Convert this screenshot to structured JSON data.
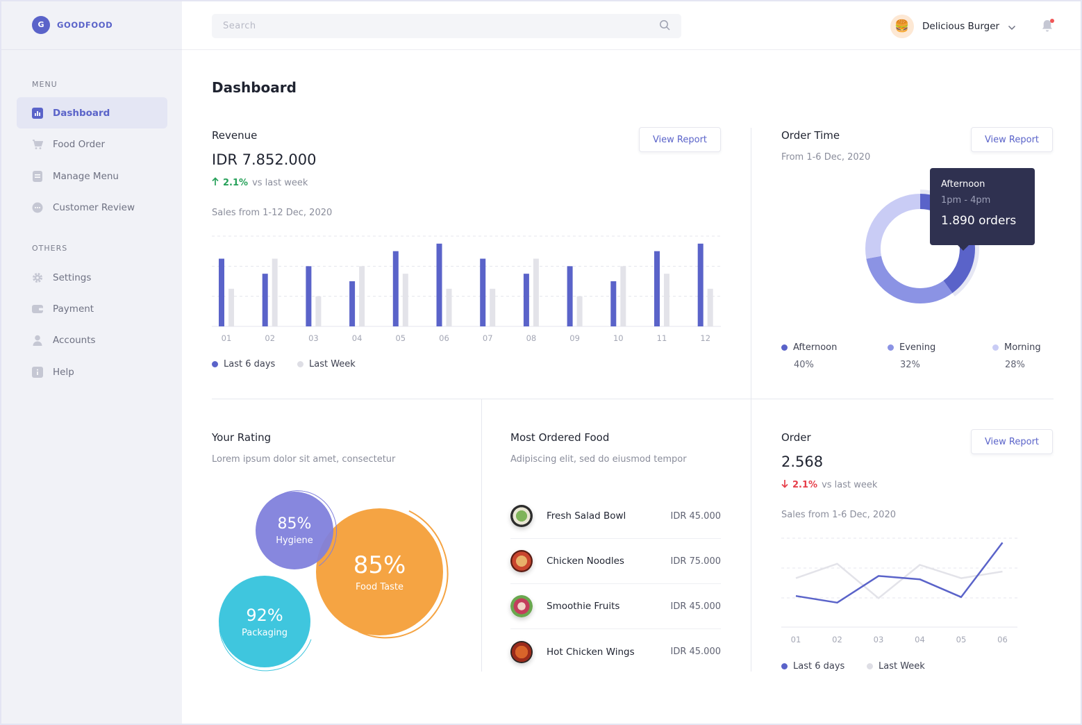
{
  "brand": {
    "logo_letter": "G",
    "name": "GOODFOOD"
  },
  "sidebar": {
    "menu_label": "MENU",
    "menu_items": [
      {
        "label": "Dashboard",
        "icon": "bar-chart-icon",
        "active": true
      },
      {
        "label": "Food Order",
        "icon": "cart-icon"
      },
      {
        "label": "Manage Menu",
        "icon": "document-icon"
      },
      {
        "label": "Customer Review",
        "icon": "chat-icon"
      }
    ],
    "others_label": "OTHERS",
    "other_items": [
      {
        "label": "Settings",
        "icon": "gear-icon"
      },
      {
        "label": "Payment",
        "icon": "wallet-icon"
      },
      {
        "label": "Accounts",
        "icon": "user-icon"
      },
      {
        "label": "Help",
        "icon": "info-icon"
      }
    ]
  },
  "header": {
    "search_placeholder": "Search",
    "user_name": "Delicious Burger",
    "avatar_glyph": "🍔"
  },
  "page_title": "Dashboard",
  "revenue": {
    "title": "Revenue",
    "view_report": "View Report",
    "amount": "IDR 7.852.000",
    "delta_pct": "2.1%",
    "delta_text": "vs last week",
    "sales_period": "Sales from 1-12 Dec, 2020",
    "legend_current": "Last 6 days",
    "legend_previous": "Last Week"
  },
  "order_time": {
    "title": "Order Time",
    "view_report": "View Report",
    "period": "From 1-6 Dec, 2020",
    "tooltip": {
      "title": "Afternoon",
      "range": "1pm - 4pm",
      "value": "1.890 orders"
    },
    "segments": [
      {
        "name": "Afternoon",
        "pct_label": "40%",
        "value": 40,
        "color": "#5a63c9"
      },
      {
        "name": "Evening",
        "pct_label": "32%",
        "value": 32,
        "color": "#8b93e4"
      },
      {
        "name": "Morning",
        "pct_label": "28%",
        "value": 28,
        "color": "#c9ccf5"
      }
    ]
  },
  "rating": {
    "title": "Your Rating",
    "subtitle": "Lorem ipsum dolor sit amet, consectetur",
    "hygiene": {
      "value": "85%",
      "label": "Hygiene",
      "color": "#7f7fdc"
    },
    "food_taste": {
      "value": "85%",
      "label": "Food Taste",
      "color": "#f5a443"
    },
    "packaging": {
      "value": "92%",
      "label": "Packaging",
      "color": "#3fc6de"
    }
  },
  "most_ordered": {
    "title": "Most Ordered Food",
    "subtitle": "Adipiscing elit, sed do eiusmod tempor",
    "items": [
      {
        "name": "Fresh Salad Bowl",
        "price": "IDR 45.000"
      },
      {
        "name": "Chicken Noodles",
        "price": "IDR 75.000"
      },
      {
        "name": "Smoothie Fruits",
        "price": "IDR 45.000"
      },
      {
        "name": "Hot Chicken Wings",
        "price": "IDR 45.000"
      }
    ]
  },
  "order": {
    "title": "Order",
    "view_report": "View Report",
    "count": "2.568",
    "delta_pct": "2.1%",
    "delta_text": "vs last week",
    "sales_period": "Sales from 1-6 Dec, 2020",
    "legend_current": "Last 6 days",
    "legend_previous": "Last Week"
  },
  "chart_data": [
    {
      "type": "bar",
      "categories": [
        "01",
        "02",
        "03",
        "04",
        "05",
        "06",
        "07",
        "08",
        "09",
        "10",
        "11",
        "12"
      ],
      "series": [
        {
          "name": "Last 6 days",
          "color": "#5a63c9",
          "values": [
            9,
            7,
            8,
            6,
            10,
            11,
            9,
            7,
            8,
            6,
            10,
            11
          ]
        },
        {
          "name": "Last Week",
          "color": "#e3e3e9",
          "values": [
            5,
            9,
            4,
            8,
            7,
            5,
            5,
            9,
            4,
            8,
            7,
            5
          ]
        }
      ],
      "ylim": [
        0,
        12
      ]
    },
    {
      "type": "line",
      "x": [
        "01",
        "02",
        "03",
        "04",
        "05",
        "06"
      ],
      "series": [
        {
          "name": "Last 6 days",
          "color": "#5a63c9",
          "values": [
            2.8,
            2.2,
            4.6,
            4.3,
            2.7,
            7.6
          ]
        },
        {
          "name": "Last Week",
          "color": "#e3e3e9",
          "values": [
            4.4,
            5.7,
            2.6,
            5.6,
            4.4,
            5.0
          ]
        }
      ],
      "ylim": [
        0,
        8
      ]
    }
  ]
}
